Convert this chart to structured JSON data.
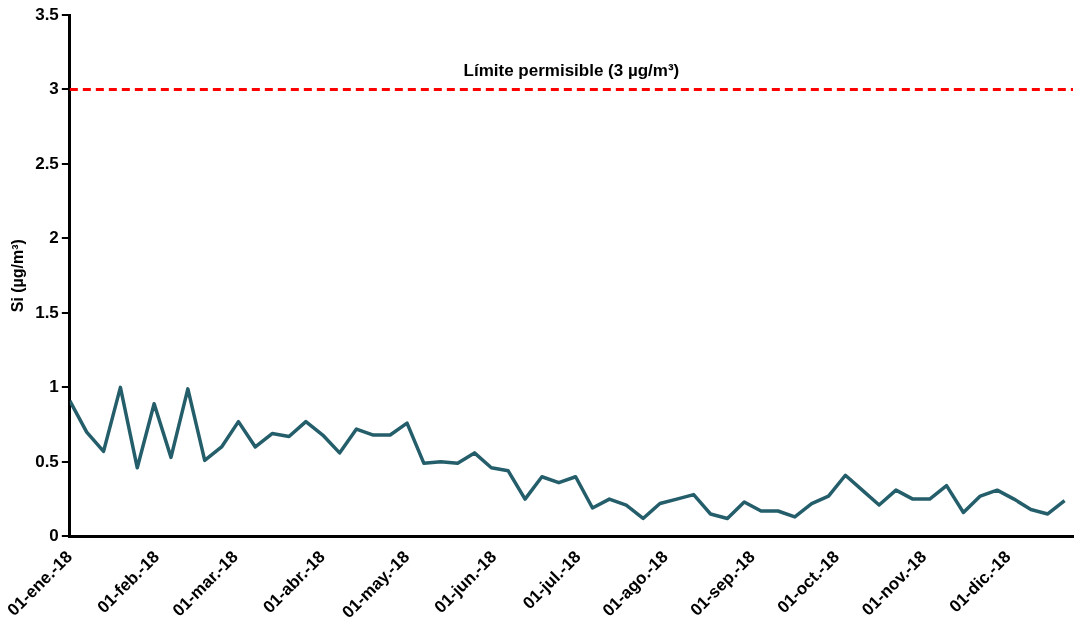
{
  "chart_data": {
    "type": "line",
    "ylabel": "Si (µg/m³)",
    "x": [
      "2018-01-01",
      "2018-01-07",
      "2018-01-13",
      "2018-01-19",
      "2018-01-25",
      "2018-01-31",
      "2018-02-06",
      "2018-02-12",
      "2018-02-18",
      "2018-02-24",
      "2018-03-02",
      "2018-03-08",
      "2018-03-14",
      "2018-03-20",
      "2018-03-26",
      "2018-04-01",
      "2018-04-07",
      "2018-04-13",
      "2018-04-19",
      "2018-04-25",
      "2018-05-01",
      "2018-05-07",
      "2018-05-13",
      "2018-05-19",
      "2018-05-25",
      "2018-05-31",
      "2018-06-06",
      "2018-06-12",
      "2018-06-18",
      "2018-06-24",
      "2018-06-30",
      "2018-07-06",
      "2018-07-12",
      "2018-07-18",
      "2018-07-24",
      "2018-07-30",
      "2018-08-05",
      "2018-08-11",
      "2018-08-17",
      "2018-08-23",
      "2018-08-29",
      "2018-09-04",
      "2018-09-10",
      "2018-09-16",
      "2018-09-22",
      "2018-09-28",
      "2018-10-04",
      "2018-10-10",
      "2018-10-16",
      "2018-10-22",
      "2018-10-28",
      "2018-11-03",
      "2018-11-09",
      "2018-11-15",
      "2018-11-21",
      "2018-11-27",
      "2018-12-03",
      "2018-12-09",
      "2018-12-15",
      "2018-12-21"
    ],
    "series": [
      {
        "color": "#255e6b",
        "values": [
          0.91,
          0.7,
          0.57,
          1.0,
          0.46,
          0.89,
          0.53,
          0.99,
          0.51,
          0.6,
          0.77,
          0.6,
          0.69,
          0.67,
          0.77,
          0.68,
          0.56,
          0.72,
          0.68,
          0.68,
          0.76,
          0.49,
          0.5,
          0.49,
          0.56,
          0.46,
          0.44,
          0.25,
          0.4,
          0.36,
          0.4,
          0.19,
          0.25,
          0.21,
          0.12,
          0.22,
          0.25,
          0.28,
          0.15,
          0.12,
          0.23,
          0.17,
          0.17,
          0.13,
          0.22,
          0.27,
          0.41,
          0.31,
          0.21,
          0.31,
          0.25,
          0.25,
          0.34,
          0.16,
          0.27,
          0.31,
          0.25,
          0.18,
          0.15,
          0.24
        ]
      }
    ],
    "xlim": [
      "2018-01-01",
      "2018-12-24"
    ],
    "xticks": [
      {
        "value": "2018-01-01",
        "label": "01-ene.-18"
      },
      {
        "value": "2018-02-01",
        "label": "01-feb.-18"
      },
      {
        "value": "2018-03-01",
        "label": "01-mar.-18"
      },
      {
        "value": "2018-04-01",
        "label": "01-abr.-18"
      },
      {
        "value": "2018-05-01",
        "label": "01-may.-18"
      },
      {
        "value": "2018-06-01",
        "label": "01-jun.-18"
      },
      {
        "value": "2018-07-01",
        "label": "01-jul.-18"
      },
      {
        "value": "2018-08-01",
        "label": "01-ago.-18"
      },
      {
        "value": "2018-09-01",
        "label": "01-sep.-18"
      },
      {
        "value": "2018-10-01",
        "label": "01-oct.-18"
      },
      {
        "value": "2018-11-01",
        "label": "01-nov.-18"
      },
      {
        "value": "2018-12-01",
        "label": "01-dic.-18"
      }
    ],
    "ylim": [
      0,
      3.5
    ],
    "yticks": [
      0,
      0.5,
      1,
      1.5,
      2,
      2.5,
      3,
      3.5
    ],
    "ref_lines": [
      {
        "axis": "y",
        "value": 3,
        "label": "Límite permisible (3 µg/m³)",
        "color": "#ff0000",
        "line_style": "dashed"
      }
    ],
    "grid": false,
    "legend": false,
    "marker": "none",
    "line_style": "solid"
  }
}
